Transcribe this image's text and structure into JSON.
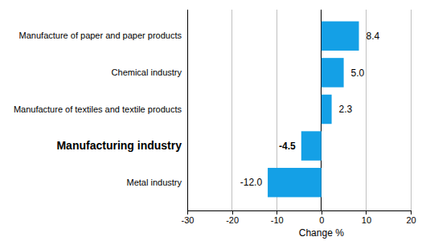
{
  "chart_data": {
    "type": "bar",
    "orientation": "horizontal",
    "x_label": "Change %",
    "categories": [
      "Manufacture of paper and paper products",
      "Chemical industry",
      "Manufacture of textiles and textile products",
      "Manufacturing industry",
      "Metal industry"
    ],
    "values": [
      8.4,
      5.0,
      2.3,
      -4.5,
      -12.0
    ],
    "value_labels": [
      "8.4",
      "5.0",
      "2.3",
      "-4.5",
      "-12.0"
    ],
    "color": "#14a0e6",
    "xlim": [
      -30,
      20
    ],
    "xticks": [
      -30,
      -20,
      -10,
      0,
      10,
      20
    ],
    "grid": true,
    "data_labels": true
  }
}
